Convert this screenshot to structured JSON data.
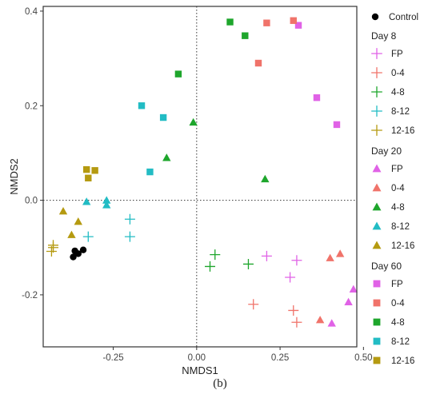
{
  "caption": "(b)",
  "chart_data": {
    "type": "scatter",
    "xlabel": "NMDS1",
    "ylabel": "NMDS2",
    "xlim": [
      -0.46,
      0.48
    ],
    "ylim": [
      -0.31,
      0.41
    ],
    "xticks": [
      -0.25,
      0.0,
      0.25,
      0.5
    ],
    "xtick_labels": [
      "-0.25",
      "0.00",
      "0.25",
      "0.50"
    ],
    "yticks": [
      -0.2,
      0.0,
      0.2,
      0.4
    ],
    "ytick_labels": [
      "-0.2",
      "0.0",
      "0.2",
      "0.4"
    ],
    "reference_lines": {
      "x": 0,
      "y": 0,
      "style": "dotted"
    },
    "grid": false,
    "legend_position": "right",
    "group_colors": {
      "FP": "#e062e6",
      "0-4": "#f0736a",
      "4-8": "#1ea62c",
      "8-12": "#22bcc4",
      "12-16": "#b59a10"
    },
    "control_color": "#000000",
    "legend": {
      "control": "Control",
      "groups": [
        {
          "title": "Day  8",
          "marker": "cross",
          "items": [
            "FP",
            "0-4",
            "4-8",
            "8-12",
            "12-16"
          ]
        },
        {
          "title": "Day  20",
          "marker": "triangle",
          "items": [
            "FP",
            "0-4",
            "4-8",
            "8-12",
            "12-16"
          ]
        },
        {
          "title": "Day  60",
          "marker": "square",
          "items": [
            "FP",
            "0-4",
            "4-8",
            "8-12",
            "12-16"
          ]
        }
      ]
    },
    "series": [
      {
        "name": "Control",
        "marker": "circle",
        "color": "#000000",
        "points": [
          [
            -0.37,
            -0.12
          ],
          [
            -0.365,
            -0.107
          ],
          [
            -0.355,
            -0.113
          ],
          [
            -0.34,
            -0.105
          ]
        ]
      },
      {
        "name": "FP",
        "group": "Day  8",
        "marker": "cross",
        "color": "#e062e6",
        "points": [
          [
            0.21,
            -0.118
          ],
          [
            0.3,
            -0.127
          ],
          [
            0.28,
            -0.163
          ]
        ]
      },
      {
        "name": "0-4",
        "group": "Day  8",
        "marker": "cross",
        "color": "#f0736a",
        "points": [
          [
            0.17,
            -0.22
          ],
          [
            0.29,
            -0.233
          ],
          [
            0.3,
            -0.258
          ]
        ]
      },
      {
        "name": "4-8",
        "group": "Day  8",
        "marker": "cross",
        "color": "#1ea62c",
        "points": [
          [
            0.055,
            -0.115
          ],
          [
            0.04,
            -0.14
          ],
          [
            0.155,
            -0.135
          ]
        ]
      },
      {
        "name": "8-12",
        "group": "Day  8",
        "marker": "cross",
        "color": "#22bcc4",
        "points": [
          [
            -0.325,
            -0.077
          ],
          [
            -0.2,
            -0.04
          ],
          [
            -0.2,
            -0.077
          ]
        ]
      },
      {
        "name": "12-16",
        "group": "Day  8",
        "marker": "cross",
        "color": "#b59a10",
        "points": [
          [
            -0.43,
            -0.095
          ],
          [
            -0.435,
            -0.108
          ],
          [
            -0.43,
            -0.1
          ]
        ]
      },
      {
        "name": "FP",
        "group": "Day  20",
        "marker": "triangle",
        "color": "#e062e6",
        "points": [
          [
            0.47,
            -0.188
          ],
          [
            0.455,
            -0.215
          ],
          [
            0.405,
            -0.26
          ]
        ]
      },
      {
        "name": "0-4",
        "group": "Day  20",
        "marker": "triangle",
        "color": "#f0736a",
        "points": [
          [
            0.4,
            -0.122
          ],
          [
            0.43,
            -0.113
          ],
          [
            0.37,
            -0.253
          ]
        ]
      },
      {
        "name": "4-8",
        "group": "Day  20",
        "marker": "triangle",
        "color": "#1ea62c",
        "points": [
          [
            -0.01,
            0.165
          ],
          [
            -0.09,
            0.09
          ],
          [
            0.205,
            0.045
          ]
        ]
      },
      {
        "name": "8-12",
        "group": "Day  20",
        "marker": "triangle",
        "color": "#22bcc4",
        "points": [
          [
            -0.33,
            -0.003
          ],
          [
            -0.27,
            0.0
          ],
          [
            -0.27,
            -0.01
          ]
        ]
      },
      {
        "name": "12-16",
        "group": "Day  20",
        "marker": "triangle",
        "color": "#b59a10",
        "points": [
          [
            -0.4,
            -0.023
          ],
          [
            -0.355,
            -0.045
          ],
          [
            -0.375,
            -0.073
          ]
        ]
      },
      {
        "name": "FP",
        "group": "Day  60",
        "marker": "square",
        "color": "#e062e6",
        "points": [
          [
            0.305,
            0.37
          ],
          [
            0.36,
            0.217
          ],
          [
            0.42,
            0.16
          ]
        ]
      },
      {
        "name": "0-4",
        "group": "Day  60",
        "marker": "square",
        "color": "#f0736a",
        "points": [
          [
            0.21,
            0.375
          ],
          [
            0.29,
            0.38
          ],
          [
            0.185,
            0.29
          ]
        ]
      },
      {
        "name": "4-8",
        "group": "Day  60",
        "marker": "square",
        "color": "#1ea62c",
        "points": [
          [
            0.1,
            0.377
          ],
          [
            0.145,
            0.348
          ],
          [
            -0.055,
            0.267
          ]
        ]
      },
      {
        "name": "8-12",
        "group": "Day  60",
        "marker": "square",
        "color": "#22bcc4",
        "points": [
          [
            -0.165,
            0.2
          ],
          [
            -0.1,
            0.175
          ],
          [
            -0.14,
            0.06
          ]
        ]
      },
      {
        "name": "12-16",
        "group": "Day  60",
        "marker": "square",
        "color": "#b59a10",
        "points": [
          [
            -0.33,
            0.065
          ],
          [
            -0.305,
            0.063
          ],
          [
            -0.325,
            0.047
          ]
        ]
      }
    ]
  }
}
